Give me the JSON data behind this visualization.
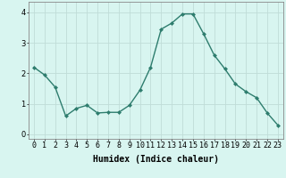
{
  "x": [
    0,
    1,
    2,
    3,
    4,
    5,
    6,
    7,
    8,
    9,
    10,
    11,
    12,
    13,
    14,
    15,
    16,
    17,
    18,
    19,
    20,
    21,
    22,
    23
  ],
  "y": [
    2.2,
    1.95,
    1.55,
    0.6,
    0.85,
    0.95,
    0.7,
    0.72,
    0.72,
    0.95,
    1.45,
    2.2,
    3.45,
    3.65,
    3.95,
    3.95,
    3.3,
    2.6,
    2.15,
    1.65,
    1.4,
    1.2,
    0.7,
    0.3
  ],
  "line_color": "#2e7d6e",
  "marker": "D",
  "marker_size": 2.0,
  "line_width": 1.0,
  "bg_color": "#d8f5f0",
  "grid_color": "#c0ddd8",
  "xlabel": "Humidex (Indice chaleur)",
  "xlabel_fontsize": 7,
  "tick_fontsize": 6,
  "ylim": [
    -0.15,
    4.35
  ],
  "xlim": [
    -0.5,
    23.5
  ],
  "yticks": [
    0,
    1,
    2,
    3,
    4
  ],
  "xtick_labels": [
    "0",
    "1",
    "2",
    "3",
    "4",
    "5",
    "6",
    "7",
    "8",
    "9",
    "10",
    "11",
    "12",
    "13",
    "14",
    "15",
    "16",
    "17",
    "18",
    "19",
    "20",
    "21",
    "22",
    "23"
  ]
}
